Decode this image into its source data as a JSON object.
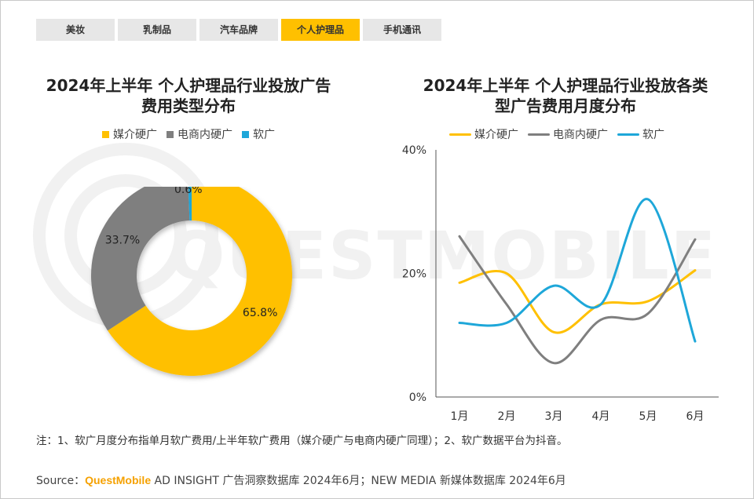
{
  "tabs": [
    {
      "label": "美妆",
      "active": false
    },
    {
      "label": "乳制品",
      "active": false
    },
    {
      "label": "汽车品牌",
      "active": false
    },
    {
      "label": "个人护理品",
      "active": true
    },
    {
      "label": "手机通讯",
      "active": false
    }
  ],
  "watermark": "QUESTMOBILE",
  "colors": {
    "media": "#ffc000",
    "ecommerce": "#7f7f7f",
    "soft": "#1ea7d9",
    "active_tab": "#ffc000"
  },
  "chart_data": [
    {
      "type": "pie",
      "title_line1": "2024年上半年 个人护理品行业投放广告",
      "title_line2": "费用类型分布",
      "legend": [
        "媒介硬广",
        "电商内硬广",
        "软广"
      ],
      "labels": [
        "媒介硬广",
        "电商内硬广",
        "软广"
      ],
      "values": [
        65.8,
        33.7,
        0.6
      ],
      "value_labels": [
        "65.8%",
        "33.7%",
        "0.6%"
      ]
    },
    {
      "type": "line",
      "title_line1": "2024年上半年 个人护理品行业投放各类",
      "title_line2": "型广告费用月度分布",
      "categories": [
        "1月",
        "2月",
        "3月",
        "4月",
        "5月",
        "6月"
      ],
      "y_ticks": [
        "0%",
        "20%",
        "40%"
      ],
      "ylim": [
        0,
        40
      ],
      "series": [
        {
          "name": "媒介硬广",
          "values": [
            18.5,
            20.0,
            10.5,
            15.0,
            15.5,
            20.5
          ]
        },
        {
          "name": "电商内硬广",
          "values": [
            26.0,
            15.0,
            5.5,
            12.5,
            13.5,
            25.5
          ]
        },
        {
          "name": "软广",
          "values": [
            12.0,
            12.0,
            18.0,
            15.0,
            32.0,
            9.0
          ]
        }
      ]
    }
  ],
  "note": "注：1、软广月度分布指单月软广费用/上半年软广费用（媒介硬广与电商内硬广同理）；2、软广数据平台为抖音。",
  "source": {
    "prefix": "Source：",
    "brand": "QuestMobile",
    "rest": " AD INSIGHT 广告洞察数据库 2024年6月；NEW MEDIA 新媒体数据库 2024年6月"
  }
}
